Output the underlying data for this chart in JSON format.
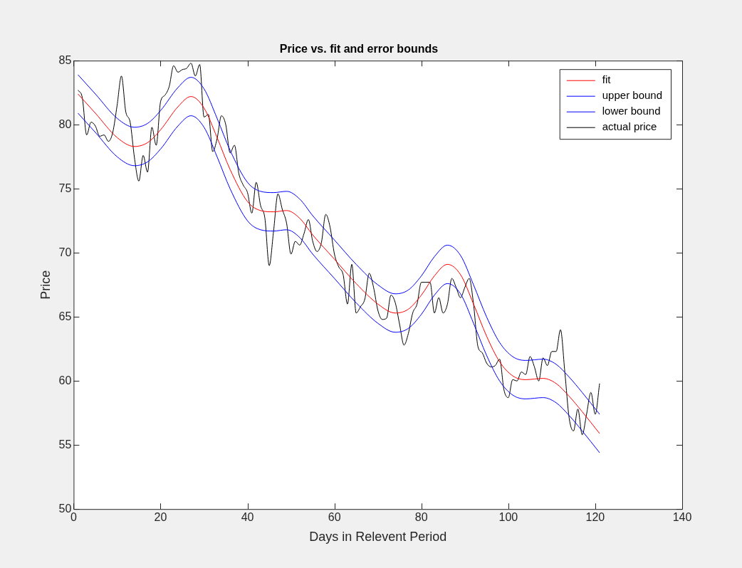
{
  "chart_data": {
    "type": "line",
    "title": "Price vs. fit and error bounds",
    "xlabel": "Days in Relevent Period",
    "ylabel": "Price",
    "x": [
      1,
      5,
      10,
      14,
      17,
      20,
      24,
      27,
      30,
      33,
      36,
      40,
      43,
      46,
      49,
      52,
      55,
      60,
      65,
      70,
      74,
      77,
      80,
      83,
      86,
      89,
      92,
      95,
      98,
      101,
      104,
      108,
      111,
      114,
      117,
      121
    ],
    "series": [
      {
        "name": "fit",
        "color": "#ff0000",
        "values": [
          82.4,
          80.9,
          79.0,
          78.3,
          78.6,
          79.6,
          81.4,
          82.2,
          81.3,
          79.0,
          76.5,
          74.0,
          73.3,
          73.2,
          73.3,
          72.7,
          71.4,
          69.5,
          67.6,
          66.0,
          65.3,
          65.6,
          66.7,
          68.2,
          69.1,
          68.3,
          66.0,
          63.5,
          61.5,
          60.4,
          60.1,
          60.2,
          59.8,
          58.8,
          57.6,
          55.9
        ]
      },
      {
        "name": "upper bound",
        "color": "#0000ff",
        "values": [
          83.9,
          82.4,
          80.5,
          79.8,
          80.1,
          81.1,
          82.9,
          83.7,
          82.8,
          80.5,
          78.0,
          75.5,
          74.8,
          74.7,
          74.8,
          74.2,
          72.9,
          71.0,
          69.1,
          67.5,
          66.8,
          67.1,
          68.2,
          69.7,
          70.6,
          69.8,
          67.5,
          65.0,
          63.0,
          61.9,
          61.6,
          61.7,
          61.3,
          60.3,
          59.1,
          57.4
        ]
      },
      {
        "name": "lower bound",
        "color": "#0000ff",
        "values": [
          80.9,
          79.4,
          77.5,
          76.8,
          77.1,
          78.1,
          79.9,
          80.7,
          79.8,
          77.5,
          75.0,
          72.5,
          71.8,
          71.7,
          71.8,
          71.2,
          69.9,
          68.0,
          66.1,
          64.5,
          63.8,
          64.1,
          65.2,
          66.7,
          67.6,
          66.8,
          64.5,
          62.0,
          60.0,
          58.9,
          58.6,
          58.7,
          58.3,
          57.3,
          56.1,
          54.4
        ]
      },
      {
        "name": "actual price",
        "color": "#000000",
        "x": [
          1,
          2,
          3,
          4,
          5,
          6,
          7,
          8,
          9,
          10,
          11,
          12,
          13,
          14,
          15,
          16,
          17,
          18,
          19,
          20,
          21,
          22,
          23,
          24,
          25,
          26,
          27,
          28,
          29,
          30,
          31,
          32,
          33,
          34,
          35,
          36,
          37,
          38,
          39,
          40,
          41,
          42,
          43,
          44,
          45,
          46,
          47,
          48,
          49,
          50,
          51,
          52,
          53,
          54,
          55,
          56,
          57,
          58,
          59,
          60,
          61,
          62,
          63,
          64,
          65,
          66,
          67,
          68,
          69,
          70,
          71,
          72,
          73,
          74,
          75,
          76,
          77,
          78,
          79,
          80,
          81,
          82,
          83,
          84,
          85,
          86,
          87,
          88,
          89,
          90,
          91,
          92,
          93,
          94,
          95,
          96,
          97,
          98,
          99,
          100,
          101,
          102,
          103,
          104,
          105,
          106,
          107,
          108,
          109,
          110,
          111,
          112,
          113,
          114,
          115,
          116,
          117,
          118,
          119,
          120,
          121
        ],
        "values": [
          82.7,
          82.1,
          79.2,
          80.2,
          79.9,
          79.1,
          79.2,
          78.7,
          79.4,
          81.5,
          83.8,
          81.0,
          80.2,
          77.4,
          75.6,
          77.6,
          76.3,
          79.8,
          78.4,
          81.8,
          82.3,
          83.0,
          84.6,
          84.1,
          84.3,
          84.4,
          84.8,
          83.8,
          84.7,
          80.6,
          80.8,
          77.9,
          78.9,
          80.7,
          80.0,
          77.8,
          78.4,
          76.2,
          75.3,
          74.7,
          73.1,
          75.5,
          73.7,
          72.7,
          69.0,
          71.7,
          74.6,
          73.4,
          72.3,
          69.9,
          70.9,
          70.6,
          71.5,
          72.6,
          70.9,
          70.1,
          70.8,
          73.0,
          72.0,
          69.9,
          68.9,
          68.3,
          66.0,
          69.1,
          65.3,
          65.8,
          66.4,
          68.4,
          67.3,
          65.5,
          64.8,
          64.9,
          66.7,
          66.1,
          64.4,
          62.8,
          63.7,
          65.3,
          66.0,
          67.7,
          67.7,
          67.7,
          65.3,
          66.5,
          65.3,
          66.0,
          68.0,
          67.3,
          66.5,
          67.3,
          68.0,
          66.0,
          62.7,
          62.2,
          61.4,
          61.1,
          61.2,
          61.7,
          59.3,
          58.7,
          60.1,
          60.0,
          60.7,
          60.5,
          61.9,
          61.1,
          60.0,
          61.8,
          61.2,
          62.3,
          62.3,
          64.0,
          60.7,
          57.1,
          56.1,
          57.8,
          55.8,
          57.4,
          59.1,
          57.4,
          59.8
        ]
      }
    ],
    "xlim": [
      0,
      140
    ],
    "xticks": [
      0,
      20,
      40,
      60,
      80,
      100,
      120,
      140
    ],
    "ylim": [
      50,
      85
    ],
    "yticks": [
      50,
      55,
      60,
      65,
      70,
      75,
      80,
      85
    ],
    "legend": "top right",
    "grid": false,
    "marker": "none",
    "line_style": "solid"
  }
}
